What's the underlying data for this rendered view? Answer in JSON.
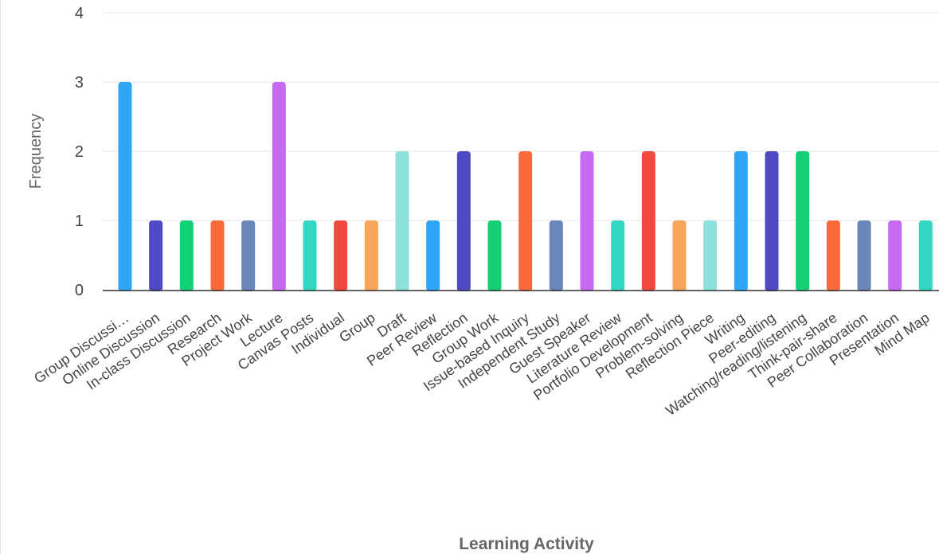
{
  "chart_data": {
    "type": "bar",
    "xlabel": "Learning Activity",
    "ylabel": "Frequency",
    "ylim": [
      0,
      4
    ],
    "yticks": [
      0,
      1,
      2,
      3,
      4
    ],
    "grid": true,
    "categories": [
      "Group Discussi…",
      "Online Discussion",
      "In-class Discussion",
      "Research",
      "Project Work",
      "Lecture",
      "Canvas Posts",
      "Individual",
      "Group",
      "Draft",
      "Peer Review",
      "Reflection",
      "Group Work",
      "Issue-based Inquiry",
      "Independent Study",
      "Guest Speaker",
      "Literature Review",
      "Portfolio Development",
      "Problem-solving",
      "Reflection Piece",
      "Writing",
      "Peer-editing",
      "Watching/reading/listening",
      "Think-pair-share",
      "Peer Collaboration",
      "Presentation",
      "Mind Map"
    ],
    "values": [
      3,
      1,
      1,
      1,
      1,
      3,
      1,
      1,
      1,
      2,
      1,
      2,
      1,
      2,
      1,
      2,
      1,
      2,
      1,
      1,
      2,
      2,
      2,
      1,
      1,
      1,
      1
    ],
    "colors": [
      "#2ea6f5",
      "#4f4ac2",
      "#17cf76",
      "#f86a3b",
      "#6b86b8",
      "#c76af2",
      "#32d8c4",
      "#f04a40",
      "#f8a65c",
      "#8de0dc",
      "#2ea6f5",
      "#4f4ac2",
      "#17cf76",
      "#f86a3b",
      "#6b86b8",
      "#c76af2",
      "#32d8c4",
      "#f04a40",
      "#f8a65c",
      "#8de0dc",
      "#2ea6f5",
      "#4f4ac2",
      "#17cf76",
      "#f86a3b",
      "#6b86b8",
      "#c76af2",
      "#32d8c4"
    ]
  }
}
